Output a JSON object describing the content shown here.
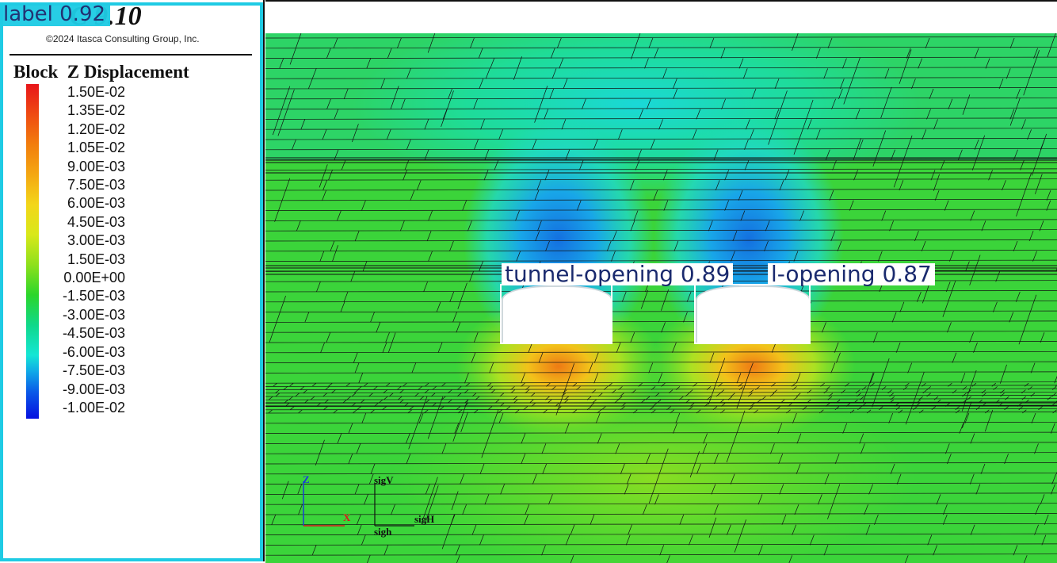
{
  "app": {
    "title": "C 9.10",
    "copyright": "©2024 Itasca Consulting Group, Inc."
  },
  "legend": {
    "heading": "Block  Z Displacement",
    "ticks": [
      "1.50E-02",
      "1.35E-02",
      "1.20E-02",
      "1.05E-02",
      "9.00E-03",
      "7.50E-03",
      "6.00E-03",
      "4.50E-03",
      "3.00E-03",
      "1.50E-03",
      "0.00E+00",
      "-1.50E-03",
      "-3.00E-03",
      "-4.50E-03",
      "-6.00E-03",
      "-7.50E-03",
      "-9.00E-03",
      "-1.00E-02"
    ],
    "detection_label": "label 0.92"
  },
  "detections": [
    {
      "label": "tunnel-opening 0.89"
    },
    {
      "label": "l-opening 0.87"
    }
  ],
  "axes": {
    "z": "Z",
    "x": "X",
    "sigV": "sigV",
    "sigH": "sigH",
    "sigh": "sigh"
  },
  "colors": {
    "detection_frame": "#1fcbe4",
    "detection_text": "#1a2a6e",
    "field_base": "#3bd43a"
  }
}
